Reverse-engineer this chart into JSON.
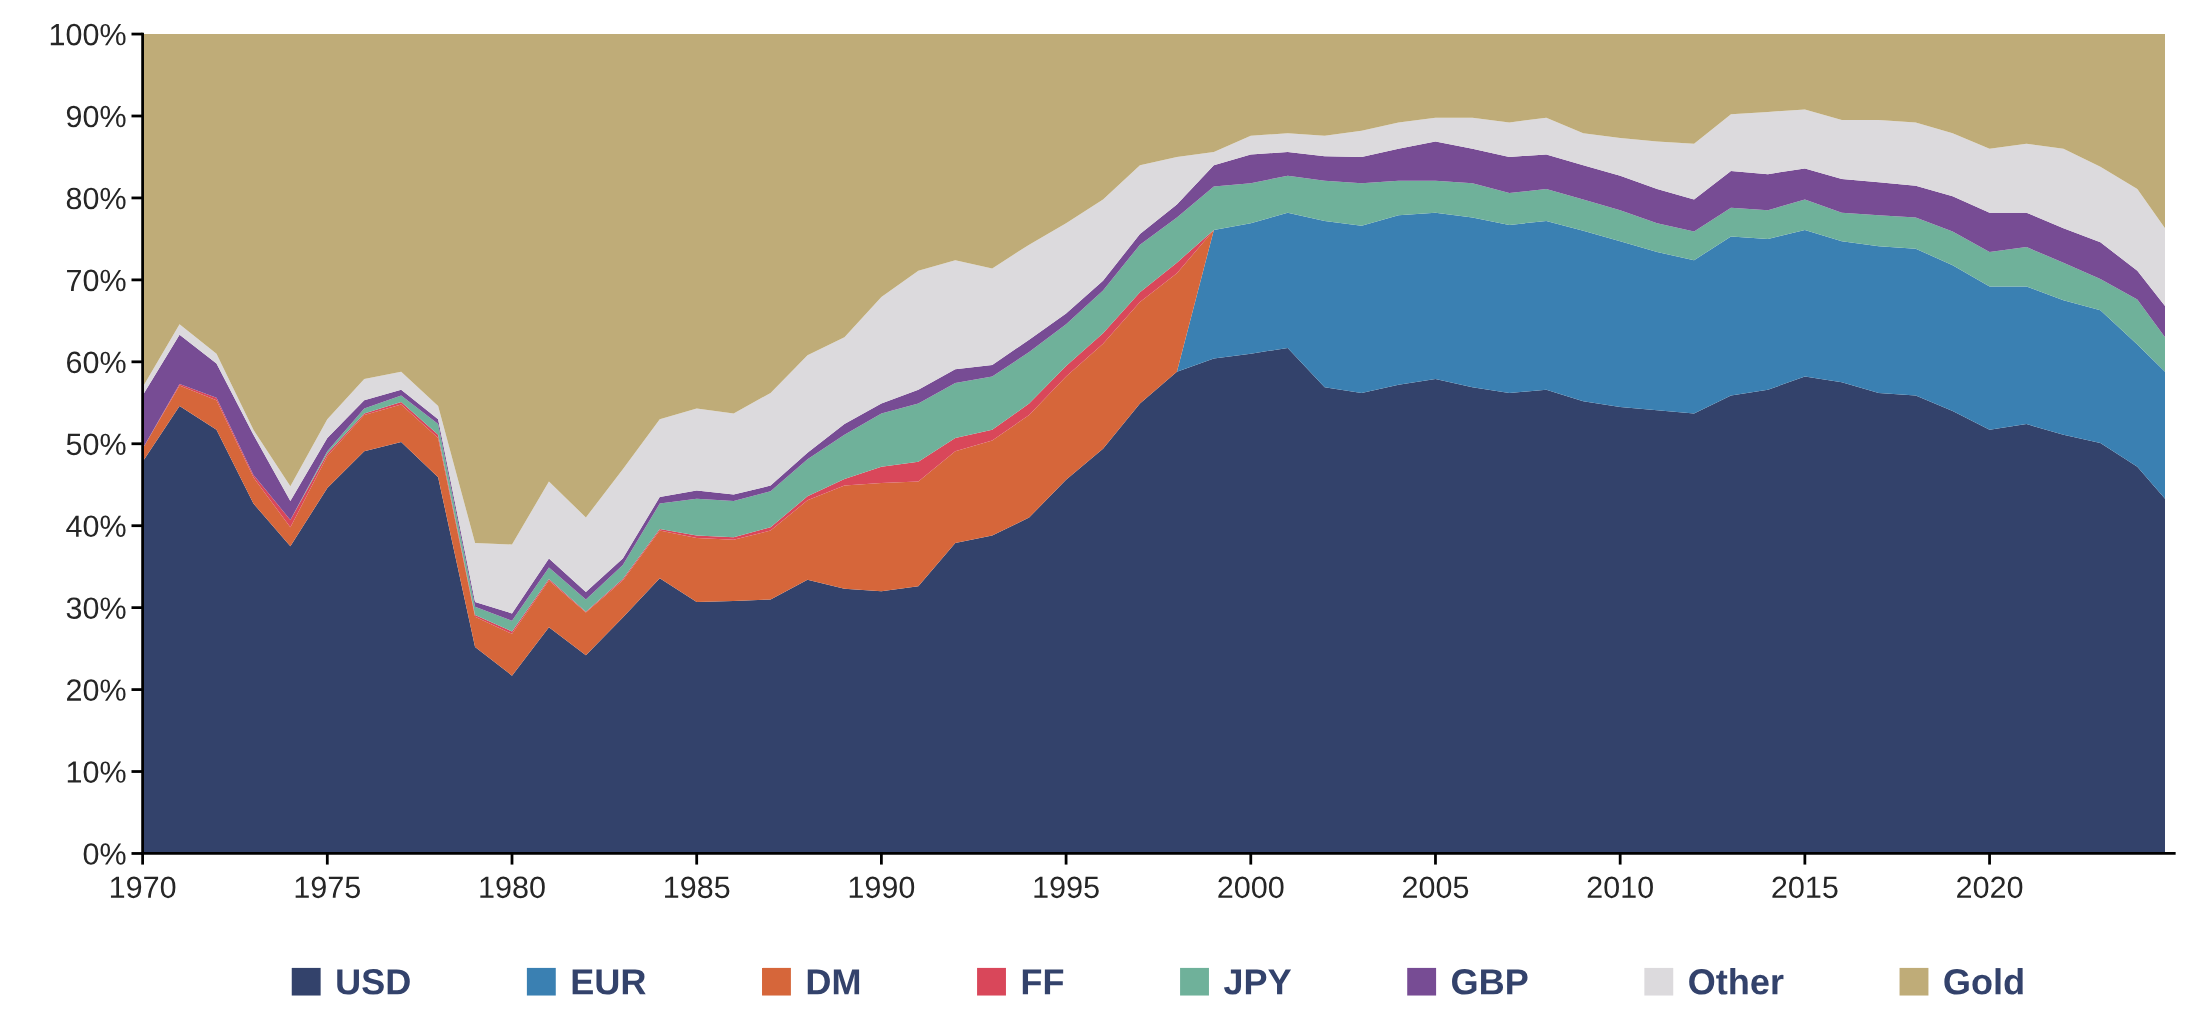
{
  "chart_data": {
    "type": "area",
    "stacked": true,
    "legend": "bottom",
    "grid": false,
    "x": [
      1970,
      1971,
      1972,
      1973,
      1974,
      1975,
      1976,
      1977,
      1978,
      1979,
      1980,
      1981,
      1982,
      1983,
      1984,
      1985,
      1986,
      1987,
      1988,
      1989,
      1990,
      1991,
      1992,
      1993,
      1994,
      1995,
      1996,
      1997,
      1998,
      1999,
      2000,
      2001,
      2002,
      2003,
      2004,
      2005,
      2006,
      2007,
      2008,
      2009,
      2010,
      2011,
      2012,
      2013,
      2014,
      2015,
      2016,
      2017,
      2018,
      2019,
      2020,
      2021,
      2022,
      2023,
      2024,
      2024.75
    ],
    "xlim": [
      1970,
      2025
    ],
    "xticks": [
      1970,
      1975,
      1980,
      1985,
      1990,
      1995,
      2000,
      2005,
      2010,
      2015,
      2020
    ],
    "ylim": [
      0,
      100
    ],
    "yticks": [
      {
        "value": 0,
        "label": "0%"
      },
      {
        "value": 10,
        "label": "10%"
      },
      {
        "value": 20,
        "label": "20%"
      },
      {
        "value": 30,
        "label": "30%"
      },
      {
        "value": 40,
        "label": "40%"
      },
      {
        "value": 50,
        "label": "50%"
      },
      {
        "value": 60,
        "label": "60%"
      },
      {
        "value": 70,
        "label": "70%"
      },
      {
        "value": 80,
        "label": "80%"
      },
      {
        "value": 90,
        "label": "90%"
      },
      {
        "value": 100,
        "label": "100%"
      }
    ],
    "series": [
      {
        "name": "USD",
        "color": "#33426b",
        "values": [
          47.8,
          54.6,
          51.7,
          42.7,
          37.5,
          44.6,
          49.1,
          50.2,
          45.9,
          25.2,
          21.7,
          27.6,
          24.2,
          28.8,
          33.6,
          30.7,
          30.8,
          31.0,
          33.4,
          32.3,
          32.0,
          32.6,
          37.9,
          38.8,
          41.0,
          45.6,
          49.4,
          54.9,
          58.8,
          60.4,
          61.0,
          61.7,
          56.9,
          56.2,
          57.2,
          57.9,
          56.9,
          56.2,
          56.6,
          55.2,
          54.5,
          54.1,
          53.7,
          55.9,
          56.6,
          58.2,
          57.5,
          56.2,
          55.9,
          54.0,
          51.7,
          52.4,
          51.1,
          50.1,
          47.2,
          43.3
        ]
      },
      {
        "name": "EUR",
        "color": "#3a80b2",
        "values": [
          null,
          null,
          null,
          null,
          null,
          null,
          null,
          null,
          null,
          null,
          null,
          null,
          null,
          null,
          null,
          null,
          null,
          null,
          null,
          null,
          null,
          null,
          null,
          null,
          null,
          null,
          null,
          null,
          0,
          15.7,
          15.9,
          16.5,
          20.3,
          20.4,
          20.7,
          20.3,
          20.7,
          20.5,
          20.6,
          20.8,
          20.2,
          19.3,
          18.7,
          19.4,
          18.4,
          17.9,
          17.2,
          17.9,
          17.9,
          17.8,
          17.5,
          16.8,
          16.4,
          16.2,
          14.9,
          15.5
        ]
      },
      {
        "name": "DM",
        "color": "#d6663a",
        "values": [
          1.6,
          2.5,
          3.6,
          3.2,
          2.3,
          3.9,
          4.4,
          4.6,
          4.8,
          3.7,
          5.1,
          5.7,
          5.2,
          4.5,
          5.8,
          7.8,
          7.5,
          8.4,
          9.7,
          12.6,
          13.2,
          12.8,
          11.2,
          11.6,
          12.5,
          12.6,
          12.8,
          12.4,
          12.0,
          0,
          null,
          null,
          null,
          null,
          null,
          null,
          null,
          null,
          null,
          null,
          null,
          null,
          null,
          null,
          null,
          null,
          null,
          null,
          null,
          null,
          null,
          null,
          null,
          null,
          null,
          null
        ]
      },
      {
        "name": "FF",
        "color": "#d9475a",
        "values": [
          0,
          0.2,
          0.3,
          0.3,
          0.9,
          0.3,
          0.2,
          0.3,
          0.4,
          0.2,
          0.3,
          0.2,
          0.1,
          0.2,
          0.2,
          0.3,
          0.3,
          0.4,
          0.5,
          0.8,
          2.0,
          2.4,
          1.6,
          1.3,
          1.4,
          1.3,
          1.3,
          1.2,
          1.3,
          0,
          null,
          null,
          null,
          null,
          null,
          null,
          null,
          null,
          null,
          null,
          null,
          null,
          null,
          null,
          null,
          null,
          null,
          null,
          null,
          null,
          null,
          null,
          null,
          null,
          null,
          null
        ]
      },
      {
        "name": "JPY",
        "color": "#6fb19a",
        "values": [
          null,
          null,
          null,
          null,
          0,
          0.3,
          0.6,
          0.8,
          1.3,
          1.0,
          1.3,
          1.4,
          1.5,
          1.7,
          3.1,
          4.5,
          4.4,
          4.4,
          4.5,
          5.4,
          6.5,
          7.1,
          6.7,
          6.5,
          6.3,
          5.1,
          5.2,
          5.8,
          5.5,
          5.3,
          4.9,
          4.5,
          4.9,
          5.2,
          4.2,
          3.9,
          4.2,
          3.9,
          3.9,
          3.8,
          3.8,
          3.5,
          3.5,
          3.5,
          3.5,
          3.7,
          3.5,
          3.8,
          3.8,
          4.1,
          4.2,
          4.8,
          4.6,
          3.8,
          5.5,
          4.2
        ]
      },
      {
        "name": "GBP",
        "color": "#774c94",
        "values": [
          6.5,
          6.0,
          4.2,
          4.9,
          2.3,
          1.6,
          1.0,
          0.7,
          0.6,
          0.6,
          0.9,
          1.1,
          0.9,
          0.8,
          0.8,
          1.0,
          0.8,
          0.7,
          0.8,
          1.3,
          1.2,
          1.7,
          1.7,
          1.4,
          1.5,
          1.3,
          1.2,
          1.3,
          1.6,
          2.6,
          3.5,
          2.9,
          3.0,
          3.2,
          3.9,
          4.8,
          4.2,
          4.4,
          4.2,
          4.2,
          4.2,
          4.2,
          3.9,
          4.5,
          4.4,
          3.8,
          4.1,
          4.0,
          3.9,
          4.3,
          4.8,
          4.2,
          4.2,
          4.5,
          3.5,
          3.8
        ]
      },
      {
        "name": "Other",
        "color": "#dcdadd",
        "values": [
          1.0,
          1.3,
          1.2,
          0.6,
          1.8,
          2.3,
          2.6,
          2.2,
          1.6,
          7.2,
          8.4,
          9.4,
          9.1,
          10.9,
          9.5,
          10.0,
          9.9,
          11.3,
          11.9,
          10.6,
          13.0,
          14.5,
          13.3,
          11.8,
          11.6,
          11.0,
          9.9,
          8.4,
          5.8,
          1.6,
          2.3,
          2.3,
          2.5,
          3.2,
          3.2,
          2.9,
          3.8,
          4.2,
          4.5,
          3.9,
          4.6,
          5.8,
          6.8,
          6.9,
          7.6,
          7.2,
          7.2,
          7.6,
          7.7,
          7.7,
          7.8,
          8.4,
          9.7,
          9.2,
          10.0,
          9.5
        ]
      },
      {
        "name": "Gold",
        "color": "#bfac78",
        "values": [
          43.1,
          35.4,
          39.0,
          48.3,
          55.2,
          47.0,
          42.1,
          41.2,
          45.4,
          62.1,
          62.3,
          54.6,
          59.0,
          53.1,
          47.0,
          45.7,
          46.3,
          43.8,
          39.2,
          37.0,
          32.1,
          28.9,
          27.6,
          28.6,
          25.7,
          23.1,
          20.2,
          16.0,
          15.0,
          14.4,
          12.4,
          12.1,
          12.4,
          11.8,
          10.8,
          10.2,
          10.2,
          10.8,
          10.2,
          12.1,
          12.7,
          13.1,
          13.4,
          9.8,
          9.5,
          9.2,
          10.5,
          10.5,
          10.8,
          12.1,
          14.0,
          13.4,
          14.0,
          16.2,
          18.9,
          23.7
        ]
      }
    ]
  }
}
